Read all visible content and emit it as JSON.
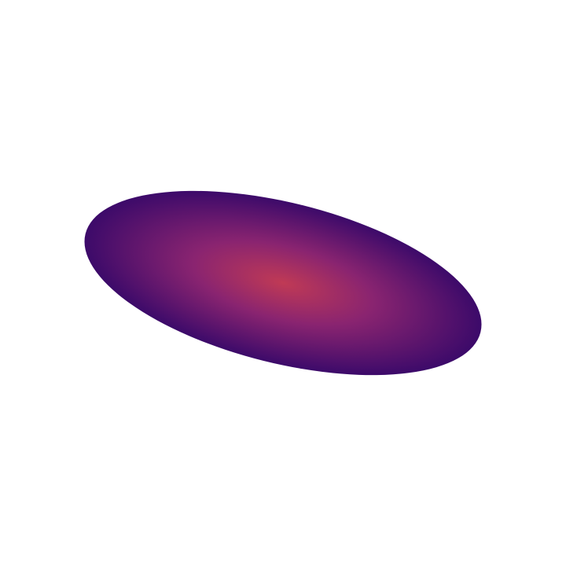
{
  "figure": {
    "shape": "ellipse",
    "gradient": {
      "center_color": "#c03a55",
      "mid_color": "#8a2470",
      "edge_color": "#3c0a6a"
    },
    "background_color": "#ffffff"
  }
}
